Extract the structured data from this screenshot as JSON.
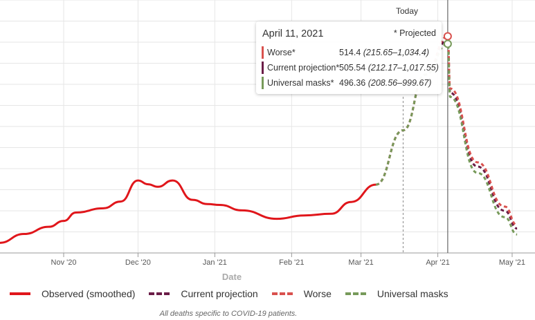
{
  "chart_data": {
    "type": "line",
    "xlabel": "Date",
    "ylabel": "",
    "x_unit": "days since Oct 1, 2020",
    "ylim": [
      0,
      600
    ],
    "xlim": [
      -1,
      214
    ],
    "x_ticks": [
      {
        "day": 31,
        "label": "Nov '20"
      },
      {
        "day": 61,
        "label": "Dec '20"
      },
      {
        "day": 92,
        "label": "Jan '21"
      },
      {
        "day": 123,
        "label": "Feb '21"
      },
      {
        "day": 151,
        "label": "Mar '21"
      },
      {
        "day": 182,
        "label": "Apr '21"
      },
      {
        "day": 212,
        "label": "May '21"
      }
    ],
    "today_day": 186,
    "today_label": "Today",
    "projection_start_day": 168,
    "series": [
      {
        "name": "Observed (smoothed)",
        "color": "#e0161b",
        "dash": false,
        "points": [
          [
            -1,
            20
          ],
          [
            5,
            24
          ],
          [
            15,
            45
          ],
          [
            25,
            62
          ],
          [
            31,
            76
          ],
          [
            36,
            96
          ],
          [
            47,
            106
          ],
          [
            54,
            122
          ],
          [
            61,
            172
          ],
          [
            65,
            163
          ],
          [
            69,
            157
          ],
          [
            75,
            172
          ],
          [
            83,
            126
          ],
          [
            89,
            116
          ],
          [
            94,
            114
          ],
          [
            103,
            101
          ],
          [
            117,
            81
          ],
          [
            128,
            89
          ],
          [
            139,
            93
          ],
          [
            147,
            121
          ],
          [
            157,
            162
          ]
        ]
      },
      {
        "name": "Current projection",
        "color": "#6b1d47",
        "dash": true,
        "points": [
          [
            157,
            162
          ],
          [
            168,
            291
          ],
          [
            177,
            423
          ],
          [
            186,
            505
          ],
          [
            187,
            380
          ],
          [
            198,
            205
          ],
          [
            209,
            100
          ],
          [
            214,
            58
          ]
        ]
      },
      {
        "name": "Worse",
        "color": "#d9514e",
        "dash": true,
        "points": [
          [
            157,
            162
          ],
          [
            168,
            291
          ],
          [
            177,
            423
          ],
          [
            186,
            514
          ],
          [
            187,
            390
          ],
          [
            198,
            215
          ],
          [
            209,
            110
          ],
          [
            214,
            66
          ]
        ]
      },
      {
        "name": "Universal masks",
        "color": "#779a5a",
        "dash": true,
        "points": [
          [
            157,
            162
          ],
          [
            168,
            291
          ],
          [
            177,
            423
          ],
          [
            186,
            496
          ],
          [
            187,
            370
          ],
          [
            198,
            190
          ],
          [
            209,
            85
          ],
          [
            214,
            44
          ]
        ]
      }
    ]
  },
  "tooltip": {
    "date": "April 11, 2021",
    "projected": "* Projected",
    "rows": [
      {
        "name": "Worse*",
        "value": "514.4",
        "range": "(215.65–1,034.4)",
        "color": "#d9514e"
      },
      {
        "name": "Current projection*",
        "value": "505.54",
        "range": "(212.17–1,017.55)",
        "color": "#6b1d47"
      },
      {
        "name": "Universal masks*",
        "value": "496.36",
        "range": "(208.56–999.67)",
        "color": "#779a5a"
      }
    ]
  },
  "note": "All deaths specific to COVID-19 patients."
}
